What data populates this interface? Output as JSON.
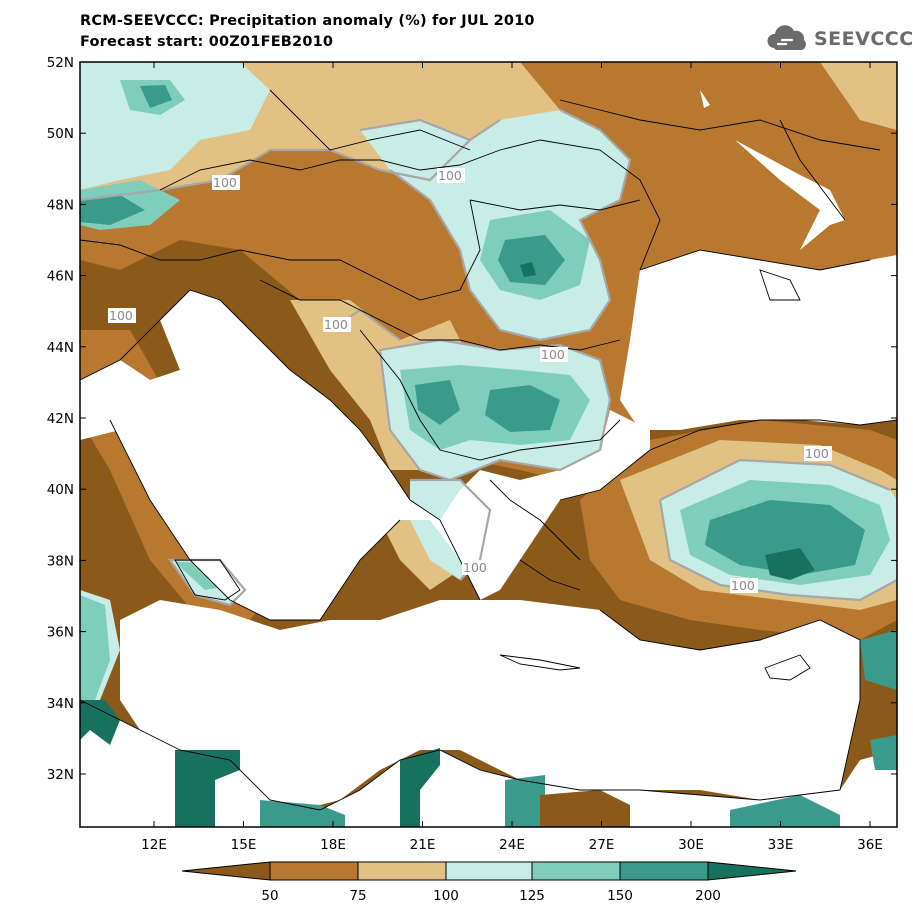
{
  "header": {
    "title": "RCM-SEEVCCC: Precipitation anomaly (%) for JUL 2010",
    "subtitle": "Forecast start: 00Z01FEB2010"
  },
  "logo": {
    "text": "SEEVCCC",
    "icon": "cloud-icon"
  },
  "map": {
    "lat_labels": [
      "52N",
      "50N",
      "48N",
      "46N",
      "44N",
      "42N",
      "40N",
      "38N",
      "36N",
      "34N",
      "32N"
    ],
    "lon_labels": [
      "12E",
      "15E",
      "18E",
      "21E",
      "24E",
      "27E",
      "30E",
      "33E",
      "36E"
    ],
    "contour_labels": [
      "100",
      "100",
      "100",
      "100",
      "100",
      "100",
      "100",
      "100"
    ]
  },
  "colorbar": {
    "ticks": [
      "50",
      "75",
      "100",
      "125",
      "150",
      "200"
    ],
    "colors": [
      "#8b5a1b",
      "#b8782f",
      "#e2c184",
      "#c8ece6",
      "#7fcdbb",
      "#3a9a8c",
      "#18705f"
    ]
  }
}
